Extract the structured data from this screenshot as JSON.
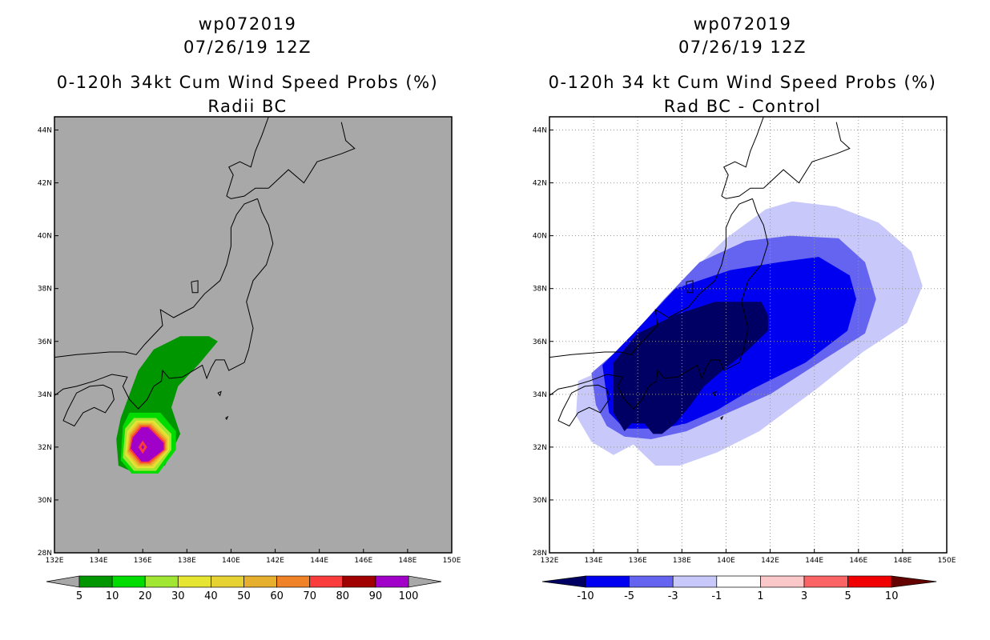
{
  "chart_data": [
    {
      "type": "filled-contour-map",
      "title_lines": [
        "wp072019",
        "07/26/19 12Z",
        "0-120h 34kt Cum Wind Speed Probs (%)",
        "Radii BC"
      ],
      "x_ticks": [
        "132E",
        "134E",
        "136E",
        "138E",
        "140E",
        "142E",
        "144E",
        "146E",
        "148E",
        "150E"
      ],
      "y_ticks": [
        "28N",
        "30N",
        "32N",
        "34N",
        "36N",
        "38N",
        "40N",
        "42N",
        "44N"
      ],
      "xlim": [
        132,
        150
      ],
      "ylim": [
        28,
        44.5
      ],
      "grid": false,
      "background_color": "#a8a8a8",
      "colorbar": {
        "labels": [
          "5",
          "10",
          "20",
          "30",
          "40",
          "50",
          "60",
          "70",
          "80",
          "90",
          "100"
        ],
        "colors": [
          "#009600",
          "#00dc00",
          "#a0e632",
          "#e6e632",
          "#e6d232",
          "#e6af2d",
          "#f08228",
          "#fa3c3c",
          "#a00000",
          "#a000c8"
        ]
      },
      "contours": [
        {
          "level": "5-10",
          "color": "#009600",
          "points": [
            [
              135.0,
              33.1
            ],
            [
              135.8,
              34.9
            ],
            [
              136.5,
              35.7
            ],
            [
              137.7,
              36.2
            ],
            [
              139.0,
              36.2
            ],
            [
              139.4,
              36.0
            ],
            [
              138.6,
              35.2
            ],
            [
              137.6,
              34.3
            ],
            [
              137.3,
              33.5
            ],
            [
              137.7,
              32.5
            ],
            [
              137.0,
              31.3
            ],
            [
              135.7,
              31.0
            ],
            [
              134.9,
              31.3
            ],
            [
              134.8,
              32.3
            ]
          ]
        },
        {
          "level": "10-20",
          "color": "#00dc00",
          "points": [
            [
              135.1,
              32.8
            ],
            [
              135.4,
              33.3
            ],
            [
              136.8,
              33.3
            ],
            [
              137.5,
              32.6
            ],
            [
              137.5,
              31.9
            ],
            [
              136.7,
              31.0
            ],
            [
              135.5,
              31.0
            ],
            [
              135.0,
              31.5
            ]
          ]
        },
        {
          "level": "20-30",
          "color": "#a0e632",
          "points": [
            [
              135.2,
              32.7
            ],
            [
              135.6,
              33.1
            ],
            [
              136.6,
              33.1
            ],
            [
              137.3,
              32.5
            ],
            [
              137.3,
              31.9
            ],
            [
              136.6,
              31.1
            ],
            [
              135.6,
              31.1
            ],
            [
              135.1,
              31.6
            ]
          ]
        },
        {
          "level": "30-40",
          "color": "#e6e632",
          "points": [
            [
              135.3,
              32.6
            ],
            [
              135.7,
              33.0
            ],
            [
              136.5,
              33.0
            ],
            [
              137.2,
              32.4
            ],
            [
              137.2,
              31.9
            ],
            [
              136.5,
              31.2
            ],
            [
              135.7,
              31.2
            ],
            [
              135.2,
              31.7
            ]
          ]
        },
        {
          "level": "40-50",
          "color": "#e6d232",
          "points": [
            [
              135.35,
              32.55
            ],
            [
              135.75,
              32.95
            ],
            [
              136.45,
              32.95
            ],
            [
              137.15,
              32.35
            ],
            [
              137.15,
              31.9
            ],
            [
              136.45,
              31.25
            ],
            [
              135.75,
              31.25
            ],
            [
              135.25,
              31.75
            ]
          ]
        },
        {
          "level": "50-60",
          "color": "#e6af2d",
          "points": [
            [
              135.4,
              32.5
            ],
            [
              135.8,
              32.9
            ],
            [
              136.4,
              32.9
            ],
            [
              137.1,
              32.3
            ],
            [
              137.1,
              31.9
            ],
            [
              136.4,
              31.3
            ],
            [
              135.8,
              31.3
            ],
            [
              135.3,
              31.8
            ]
          ]
        },
        {
          "level": "60-70",
          "color": "#f08228",
          "points": [
            [
              135.45,
              32.45
            ],
            [
              135.85,
              32.85
            ],
            [
              136.35,
              32.85
            ],
            [
              137.05,
              32.25
            ],
            [
              137.05,
              31.9
            ],
            [
              136.35,
              31.35
            ],
            [
              135.85,
              31.35
            ],
            [
              135.35,
              31.85
            ]
          ]
        },
        {
          "level": "70-80",
          "color": "#fa3c3c",
          "points": [
            [
              135.5,
              32.4
            ],
            [
              135.9,
              32.8
            ],
            [
              136.3,
              32.8
            ],
            [
              137.0,
              32.2
            ],
            [
              137.0,
              31.9
            ],
            [
              136.3,
              31.4
            ],
            [
              135.9,
              31.4
            ],
            [
              135.4,
              31.9
            ]
          ]
        },
        {
          "level": "90-100",
          "color": "#a000c8",
          "points": [
            [
              135.55,
              32.35
            ],
            [
              135.95,
              32.75
            ],
            [
              136.25,
              32.75
            ],
            [
              136.95,
              32.15
            ],
            [
              136.95,
              31.9
            ],
            [
              136.25,
              31.45
            ],
            [
              135.95,
              31.45
            ],
            [
              135.45,
              31.95
            ]
          ]
        },
        {
          "level": "80-90",
          "color": "#fa3c3c",
          "points": [
            [
              135.8,
              32.0
            ],
            [
              136.0,
              32.25
            ],
            [
              136.2,
              32.0
            ],
            [
              136.0,
              31.75
            ]
          ]
        },
        {
          "level": "90-100 core",
          "color": "#a000c8",
          "points": [
            [
              135.93,
              32.0
            ],
            [
              136.0,
              32.09
            ],
            [
              136.07,
              32.0
            ],
            [
              136.0,
              31.91
            ]
          ]
        }
      ]
    },
    {
      "type": "filled-contour-map",
      "title_lines": [
        "wp072019",
        "07/26/19 12Z",
        "0-120h 34 kt Cum Wind Speed Probs (%)",
        "Rad BC - Control"
      ],
      "x_ticks": [
        "132E",
        "134E",
        "136E",
        "138E",
        "140E",
        "142E",
        "144E",
        "146E",
        "148E",
        "150E"
      ],
      "y_ticks": [
        "28N",
        "30N",
        "32N",
        "34N",
        "36N",
        "38N",
        "40N",
        "42N",
        "44N"
      ],
      "xlim": [
        132,
        150
      ],
      "ylim": [
        28,
        44.5
      ],
      "grid": true,
      "background_color": "#ffffff",
      "colorbar": {
        "labels": [
          "-10",
          "-5",
          "-3",
          "-1",
          "1",
          "3",
          "5",
          "10"
        ],
        "colors": [
          "#000064",
          "#0000f0",
          "#6464f0",
          "#c8c8fa",
          "#ffffff",
          "#fac8c8",
          "#fa6464",
          "#f00000",
          "#640000"
        ]
      },
      "contours": [
        {
          "level": "-3 to -1",
          "color": "#c8c8fa",
          "points": [
            [
              133.3,
              34.5
            ],
            [
              135.2,
              35.2
            ],
            [
              137.0,
              36.8
            ],
            [
              138.5,
              38.7
            ],
            [
              140.0,
              39.9
            ],
            [
              141.8,
              41.0
            ],
            [
              143.0,
              41.3
            ],
            [
              145.0,
              41.1
            ],
            [
              146.9,
              40.5
            ],
            [
              148.4,
              39.4
            ],
            [
              148.9,
              38.1
            ],
            [
              148.2,
              36.7
            ],
            [
              146.2,
              35.6
            ],
            [
              144.1,
              34.2
            ],
            [
              141.5,
              32.6
            ],
            [
              139.6,
              31.8
            ],
            [
              137.9,
              31.3
            ],
            [
              136.8,
              31.3
            ],
            [
              135.8,
              32.1
            ],
            [
              134.9,
              31.7
            ],
            [
              133.9,
              32.2
            ],
            [
              133.2,
              33.2
            ]
          ]
        },
        {
          "level": "-5 to -3",
          "color": "#6464f0",
          "points": [
            [
              133.9,
              34.8
            ],
            [
              135.4,
              35.9
            ],
            [
              137.2,
              37.6
            ],
            [
              138.8,
              39.0
            ],
            [
              140.9,
              39.8
            ],
            [
              142.9,
              40.0
            ],
            [
              145.1,
              39.9
            ],
            [
              146.3,
              39.0
            ],
            [
              146.8,
              37.6
            ],
            [
              146.3,
              36.3
            ],
            [
              144.4,
              35.3
            ],
            [
              142.0,
              34.0
            ],
            [
              140.1,
              33.3
            ],
            [
              138.2,
              32.6
            ],
            [
              136.6,
              32.3
            ],
            [
              135.4,
              32.4
            ],
            [
              134.6,
              32.8
            ],
            [
              134.1,
              33.6
            ]
          ]
        },
        {
          "level": "-10 to -5",
          "color": "#0000f0",
          "points": [
            [
              134.4,
              35.1
            ],
            [
              135.8,
              36.3
            ],
            [
              137.7,
              38.0
            ],
            [
              140.2,
              38.7
            ],
            [
              142.4,
              39.0
            ],
            [
              144.2,
              39.2
            ],
            [
              145.6,
              38.5
            ],
            [
              145.9,
              37.6
            ],
            [
              145.5,
              36.4
            ],
            [
              143.6,
              35.2
            ],
            [
              141.2,
              34.2
            ],
            [
              139.6,
              33.4
            ],
            [
              138.2,
              32.9
            ],
            [
              137.1,
              32.7
            ],
            [
              135.4,
              32.7
            ],
            [
              134.7,
              33.3
            ]
          ]
        },
        {
          "level": "below -10",
          "color": "#000064",
          "points": [
            [
              134.9,
              35.2
            ],
            [
              136.0,
              36.3
            ],
            [
              137.7,
              37.0
            ],
            [
              139.5,
              37.5
            ],
            [
              141.6,
              37.5
            ],
            [
              141.9,
              37.0
            ],
            [
              141.9,
              36.4
            ],
            [
              140.9,
              35.6
            ],
            [
              139.7,
              34.8
            ],
            [
              139.0,
              34.3
            ],
            [
              138.4,
              33.6
            ],
            [
              137.7,
              32.9
            ],
            [
              137.1,
              32.5
            ],
            [
              136.7,
              32.5
            ],
            [
              136.3,
              32.9
            ],
            [
              135.7,
              32.9
            ],
            [
              135.4,
              32.6
            ],
            [
              134.9,
              33.3
            ]
          ]
        }
      ]
    }
  ]
}
